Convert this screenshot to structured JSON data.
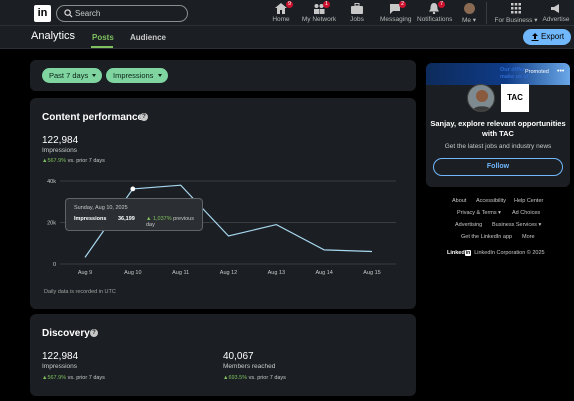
{
  "nav": {
    "logo": "in",
    "search_placeholder": "Search",
    "items": [
      {
        "label": "Home",
        "badge": "9"
      },
      {
        "label": "My Network",
        "badge": "1"
      },
      {
        "label": "Jobs",
        "badge": ""
      },
      {
        "label": "Messaging",
        "badge": "2"
      },
      {
        "label": "Notifications",
        "badge": "7"
      },
      {
        "label": "Me"
      },
      {
        "label": "For Business"
      },
      {
        "label": "Advertise"
      }
    ]
  },
  "subheader": {
    "title": "Analytics",
    "tabs": [
      "Posts",
      "Audience"
    ],
    "active_tab": "Posts",
    "export_label": "Export"
  },
  "filters": {
    "period": "Past 7 days",
    "metric": "Impressions"
  },
  "content_performance": {
    "title": "Content performance",
    "impressions": "122,984",
    "impressions_label": "Impressions",
    "delta_value": "▲567.9%",
    "delta_text": "vs. prior 7 days",
    "footnote": "Daily data is recorded in UTC",
    "tooltip": {
      "date": "Sunday, Aug 10, 2025",
      "label": "Impressions",
      "value": "36,199",
      "change": "▲ 1,037%",
      "change_text": "previous day"
    }
  },
  "chart_data": {
    "type": "line",
    "x": [
      "Aug 9",
      "Aug 10",
      "Aug 11",
      "Aug 12",
      "Aug 13",
      "Aug 14",
      "Aug 15"
    ],
    "values": [
      3200,
      36199,
      38000,
      13500,
      19000,
      6800,
      6000
    ],
    "y_ticks": [
      "0",
      "20k",
      "40k"
    ],
    "ylim": [
      0,
      40000
    ],
    "grid": true,
    "color": "#a8d8f0"
  },
  "discovery": {
    "title": "Discovery",
    "impressions": "122,984",
    "impressions_label": "Impressions",
    "impressions_delta": "▲567.9%",
    "impressions_delta_text": "vs. prior 7 days",
    "members": "40,067",
    "members_label": "Members reached",
    "members_delta": "▲693.5%",
    "members_delta_text": "vs. prior 7 days"
  },
  "ad": {
    "banner_line1": "Our differ",
    "banner_line2": "make us st",
    "promoted": "Promoted",
    "logo": "TAC",
    "headline": "Sanjay, explore relevant opportunities with TAC",
    "subtext": "Get the latest jobs and industry news",
    "follow_label": "Follow"
  },
  "footer": {
    "row1": [
      "About",
      "Accessibility",
      "Help Center"
    ],
    "row2": [
      "Privacy & Terms ▾",
      "Ad Choices"
    ],
    "row3": [
      "Advertising",
      "Business Services ▾"
    ],
    "row4": [
      "Get the LinkedIn app",
      "More"
    ],
    "brand": "Linked",
    "brand_in": "in",
    "copyright": "LinkedIn Corporation © 2025"
  }
}
